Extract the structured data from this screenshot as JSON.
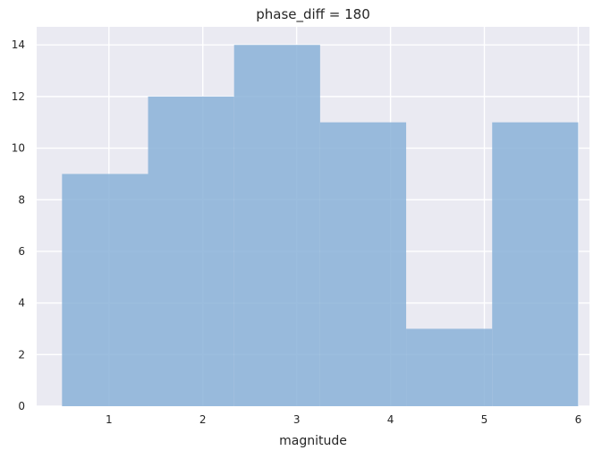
{
  "chart_data": {
    "type": "bar",
    "title": "phase_diff = 180",
    "xlabel": "magnitude",
    "ylabel": "",
    "bins": [
      {
        "x0": 0.5,
        "x1": 1.4166667,
        "value": 9
      },
      {
        "x0": 1.4166667,
        "x1": 2.3333333,
        "value": 12
      },
      {
        "x0": 2.3333333,
        "x1": 3.25,
        "value": 14
      },
      {
        "x0": 3.25,
        "x1": 4.1666667,
        "value": 11
      },
      {
        "x0": 4.1666667,
        "x1": 5.0833333,
        "value": 3
      },
      {
        "x0": 5.0833333,
        "x1": 6.0,
        "value": 11
      }
    ],
    "xlim": [
      0.23,
      6.12
    ],
    "ylim": [
      0,
      14.7
    ],
    "xticks": [
      1,
      2,
      3,
      4,
      5,
      6
    ],
    "yticks": [
      0,
      2,
      4,
      6,
      8,
      10,
      12,
      14
    ],
    "grid": true,
    "bar_color": "#8ab2d8",
    "background_color": "#eaeaf2"
  }
}
